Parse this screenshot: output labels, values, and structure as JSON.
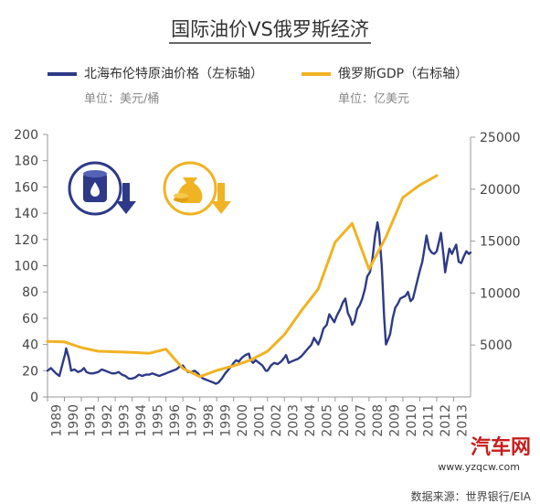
{
  "title": "国际油价VS俄罗斯经济",
  "legend": {
    "oil": {
      "label": "北海布伦特原油价格（左标轴）",
      "unit": "单位：美元/桶",
      "color": "#2e3a87"
    },
    "gdp": {
      "label": "俄罗斯GDP（右标轴）",
      "unit": "单位：亿美元",
      "color": "#f0b323"
    }
  },
  "icons": {
    "oil_icon": "oil-barrel-down-icon",
    "gdp_icon": "money-bag-down-icon"
  },
  "source": "数据来源：世界银行/EIA",
  "watermark": "汽车网",
  "watermark_url": "www.yzqcw.com",
  "chart_data": {
    "type": "line",
    "x_categories": [
      "1989",
      "1990",
      "1991",
      "1992",
      "1993",
      "1994",
      "1995",
      "1996",
      "1997",
      "1998",
      "1999",
      "2000",
      "2001",
      "2002",
      "2003",
      "2004",
      "2005",
      "2006",
      "2007",
      "2008",
      "2009",
      "2010",
      "2011",
      "2012",
      "2013"
    ],
    "left_axis": {
      "min": 0,
      "max": 200,
      "ticks": [
        0,
        20,
        40,
        60,
        80,
        100,
        120,
        140,
        160,
        180,
        200
      ]
    },
    "right_axis": {
      "min": 0,
      "max": 25000,
      "ticks": [
        5000,
        10000,
        15000,
        20000,
        25000
      ]
    },
    "grid": false,
    "series": [
      {
        "name": "北海布伦特原油价格（左标轴）",
        "axis": "left",
        "color": "#2e3a87",
        "points": [
          [
            1989.0,
            20
          ],
          [
            1989.2,
            22
          ],
          [
            1989.5,
            18
          ],
          [
            1989.7,
            16
          ],
          [
            1989.9,
            26
          ],
          [
            1990.05,
            33
          ],
          [
            1990.1,
            37
          ],
          [
            1990.25,
            30
          ],
          [
            1990.4,
            20
          ],
          [
            1990.6,
            21
          ],
          [
            1990.8,
            19
          ],
          [
            1991.0,
            20
          ],
          [
            1991.15,
            22
          ],
          [
            1991.3,
            19
          ],
          [
            1991.5,
            18
          ],
          [
            1991.7,
            18
          ],
          [
            1992.0,
            19
          ],
          [
            1992.2,
            21
          ],
          [
            1992.4,
            20
          ],
          [
            1992.6,
            19
          ],
          [
            1992.8,
            18
          ],
          [
            1993.0,
            18
          ],
          [
            1993.2,
            19
          ],
          [
            1993.4,
            17
          ],
          [
            1993.6,
            16
          ],
          [
            1993.8,
            14
          ],
          [
            1994.0,
            14
          ],
          [
            1994.2,
            15
          ],
          [
            1994.4,
            17
          ],
          [
            1994.6,
            16
          ],
          [
            1994.8,
            17
          ],
          [
            1995.0,
            17
          ],
          [
            1995.2,
            18
          ],
          [
            1995.4,
            17
          ],
          [
            1995.6,
            16
          ],
          [
            1995.8,
            17
          ],
          [
            1996.0,
            18
          ],
          [
            1996.2,
            19
          ],
          [
            1996.4,
            20
          ],
          [
            1996.6,
            21
          ],
          [
            1996.8,
            23
          ],
          [
            1997.0,
            24
          ],
          [
            1997.1,
            22
          ],
          [
            1997.3,
            19
          ],
          [
            1997.5,
            19
          ],
          [
            1997.7,
            20
          ],
          [
            1997.9,
            18
          ],
          [
            1998.0,
            16
          ],
          [
            1998.2,
            14
          ],
          [
            1998.4,
            13
          ],
          [
            1998.6,
            12
          ],
          [
            1998.8,
            11
          ],
          [
            1998.95,
            10
          ],
          [
            1999.1,
            11
          ],
          [
            1999.3,
            14
          ],
          [
            1999.5,
            18
          ],
          [
            1999.7,
            21
          ],
          [
            1999.9,
            24
          ],
          [
            2000.0,
            26
          ],
          [
            2000.15,
            28
          ],
          [
            2000.3,
            27
          ],
          [
            2000.5,
            30
          ],
          [
            2000.7,
            32
          ],
          [
            2000.9,
            33
          ],
          [
            2001.0,
            28
          ],
          [
            2001.15,
            26
          ],
          [
            2001.3,
            28
          ],
          [
            2001.5,
            26
          ],
          [
            2001.7,
            24
          ],
          [
            2001.9,
            20
          ],
          [
            2002.0,
            20
          ],
          [
            2002.2,
            24
          ],
          [
            2002.4,
            26
          ],
          [
            2002.6,
            25
          ],
          [
            2002.8,
            27
          ],
          [
            2003.0,
            30
          ],
          [
            2003.1,
            32
          ],
          [
            2003.25,
            26
          ],
          [
            2003.4,
            27
          ],
          [
            2003.6,
            28
          ],
          [
            2003.8,
            29
          ],
          [
            2004.0,
            31
          ],
          [
            2004.2,
            34
          ],
          [
            2004.4,
            37
          ],
          [
            2004.6,
            40
          ],
          [
            2004.75,
            45
          ],
          [
            2004.9,
            42
          ],
          [
            2005.0,
            40
          ],
          [
            2005.15,
            45
          ],
          [
            2005.3,
            52
          ],
          [
            2005.5,
            55
          ],
          [
            2005.65,
            63
          ],
          [
            2005.8,
            60
          ],
          [
            2005.95,
            57
          ],
          [
            2006.1,
            62
          ],
          [
            2006.3,
            67
          ],
          [
            2006.45,
            72
          ],
          [
            2006.6,
            75
          ],
          [
            2006.75,
            64
          ],
          [
            2006.9,
            60
          ],
          [
            2007.0,
            55
          ],
          [
            2007.15,
            58
          ],
          [
            2007.3,
            67
          ],
          [
            2007.45,
            70
          ],
          [
            2007.6,
            75
          ],
          [
            2007.75,
            82
          ],
          [
            2007.9,
            92
          ],
          [
            2008.05,
            95
          ],
          [
            2008.2,
            105
          ],
          [
            2008.35,
            122
          ],
          [
            2008.5,
            133
          ],
          [
            2008.6,
            125
          ],
          [
            2008.75,
            100
          ],
          [
            2008.9,
            60
          ],
          [
            2009.0,
            40
          ],
          [
            2009.1,
            43
          ],
          [
            2009.25,
            48
          ],
          [
            2009.4,
            60
          ],
          [
            2009.55,
            68
          ],
          [
            2009.7,
            71
          ],
          [
            2009.85,
            75
          ],
          [
            2010.0,
            76
          ],
          [
            2010.15,
            77
          ],
          [
            2010.3,
            80
          ],
          [
            2010.45,
            73
          ],
          [
            2010.6,
            75
          ],
          [
            2010.75,
            83
          ],
          [
            2010.9,
            91
          ],
          [
            2011.0,
            96
          ],
          [
            2011.15,
            103
          ],
          [
            2011.3,
            115
          ],
          [
            2011.4,
            123
          ],
          [
            2011.55,
            113
          ],
          [
            2011.7,
            110
          ],
          [
            2011.85,
            109
          ],
          [
            2012.0,
            111
          ],
          [
            2012.15,
            119
          ],
          [
            2012.25,
            125
          ],
          [
            2012.4,
            108
          ],
          [
            2012.5,
            95
          ],
          [
            2012.6,
            103
          ],
          [
            2012.75,
            113
          ],
          [
            2012.9,
            109
          ],
          [
            2013.0,
            112
          ],
          [
            2013.15,
            116
          ],
          [
            2013.3,
            103
          ],
          [
            2013.45,
            102
          ],
          [
            2013.6,
            107
          ],
          [
            2013.75,
            111
          ],
          [
            2013.9,
            109
          ],
          [
            2014.0,
            110
          ]
        ]
      },
      {
        "name": "俄罗斯GDP（右标轴）",
        "axis": "right",
        "color": "#f0b323",
        "points": [
          [
            1989,
            5350
          ],
          [
            1990,
            5300
          ],
          [
            1991,
            4750
          ],
          [
            1992,
            4400
          ],
          [
            1993,
            4350
          ],
          [
            1994,
            4300
          ],
          [
            1995,
            4200
          ],
          [
            1996,
            4600
          ],
          [
            1997,
            2750
          ],
          [
            1998,
            1950
          ],
          [
            1999,
            2550
          ],
          [
            2000,
            3000
          ],
          [
            2001,
            3550
          ],
          [
            2002,
            4400
          ],
          [
            2003,
            6000
          ],
          [
            2004,
            8300
          ],
          [
            2005,
            10400
          ],
          [
            2006,
            14900
          ],
          [
            2007,
            16700
          ],
          [
            2008,
            12300
          ],
          [
            2009,
            15400
          ],
          [
            2010,
            19200
          ],
          [
            2011,
            20400
          ],
          [
            2012,
            21300
          ]
        ]
      }
    ]
  }
}
